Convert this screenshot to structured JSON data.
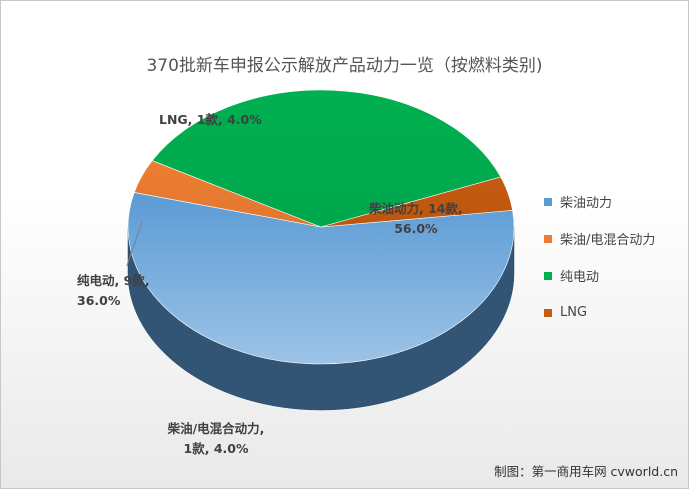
{
  "chart_data": {
    "type": "pie",
    "title": "370批新车申报公示解放产品动力一览（按燃料类别)",
    "slices": [
      {
        "name": "柴油动力",
        "count": 14,
        "percent": 56.0,
        "color": "#5B9BD5",
        "label_line1": "柴油动力, 14款,",
        "label_line2": "56.0%"
      },
      {
        "name": "柴油/电混合动力",
        "count": 1,
        "percent": 4.0,
        "color": "#ED7D31",
        "label_line1": "柴油/电混合动力,",
        "label_line2": "1款, 4.0%"
      },
      {
        "name": "纯电动",
        "count": 9,
        "percent": 36.0,
        "color": "#00B050",
        "label_line1": "纯电动, 9款,",
        "label_line2": "36.0%"
      },
      {
        "name": "LNG",
        "count": 1,
        "percent": 4.0,
        "color": "#C55A11",
        "label_line1": "LNG, 1款, 4.0%",
        "label_line2": ""
      }
    ],
    "legend_position": "right",
    "style": "3d-pie"
  },
  "credit": "制图：第一商用车网 cvworld.cn"
}
